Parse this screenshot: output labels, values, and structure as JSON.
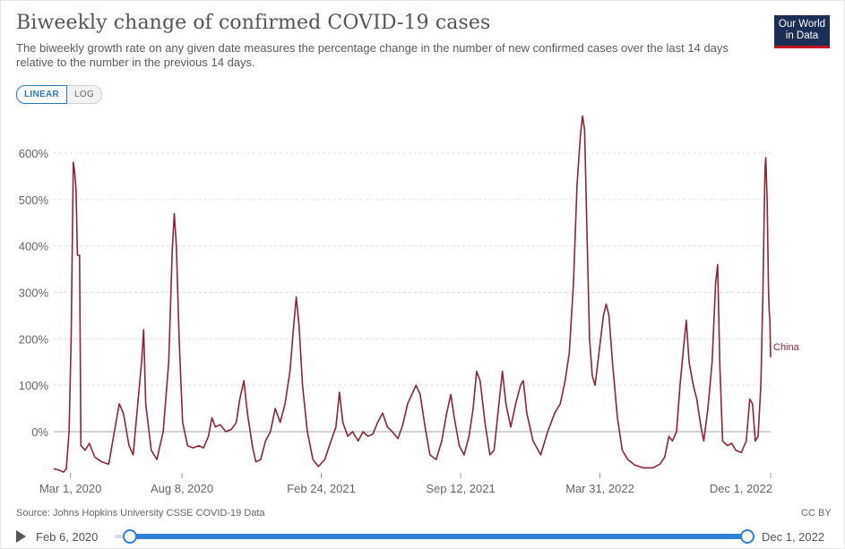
{
  "header": {
    "title": "Biweekly change of confirmed COVID-19 cases",
    "subtitle": "The biweekly growth rate on any given date measures the percentage change in the number of new confirmed cases over the last 14 days relative to the number in the previous 14 days.",
    "logo_line1": "Our World",
    "logo_line2": "in Data"
  },
  "toggle": {
    "linear_label": "LINEAR",
    "log_label": "LOG"
  },
  "footer": {
    "source": "Source: Johns Hopkins University CSSE COVID-19 Data",
    "license": "CC BY"
  },
  "timeline": {
    "start_label": "Feb 6, 2020",
    "end_label": "Dec 1, 2022"
  },
  "colors": {
    "series": "#8b2635",
    "grid": "#dddddd",
    "slider": "#2f7ed8",
    "logo_bg": "#1b2f56",
    "logo_accent": "#c4151c"
  },
  "chart_data": {
    "type": "line",
    "x_axis_type": "date",
    "x_range": [
      "2020-02-06",
      "2022-12-01"
    ],
    "y_range": [
      -90,
      680
    ],
    "y_ticks": [
      0,
      100,
      200,
      300,
      400,
      500,
      600
    ],
    "y_tick_labels": [
      "0%",
      "100%",
      "200%",
      "300%",
      "400%",
      "500%",
      "600%"
    ],
    "x_ticks": [
      "2020-03-01",
      "2020-08-08",
      "2021-02-24",
      "2021-09-12",
      "2022-03-31",
      "2022-12-01"
    ],
    "x_tick_labels": [
      "Mar 1, 2020",
      "Aug 8, 2020",
      "Feb 24, 2021",
      "Sep 12, 2021",
      "Mar 31, 2022",
      "Dec 1, 2022"
    ],
    "grid": true,
    "series": [
      {
        "name": "China",
        "points": [
          [
            "2020-02-06",
            -80
          ],
          [
            "2020-02-12",
            -82
          ],
          [
            "2020-02-20",
            -87
          ],
          [
            "2020-02-24",
            -80
          ],
          [
            "2020-02-28",
            0
          ],
          [
            "2020-03-02",
            200
          ],
          [
            "2020-03-05",
            580
          ],
          [
            "2020-03-07",
            560
          ],
          [
            "2020-03-09",
            520
          ],
          [
            "2020-03-11",
            380
          ],
          [
            "2020-03-14",
            380
          ],
          [
            "2020-03-16",
            -30
          ],
          [
            "2020-03-22",
            -40
          ],
          [
            "2020-03-28",
            -25
          ],
          [
            "2020-04-05",
            -55
          ],
          [
            "2020-04-15",
            -65
          ],
          [
            "2020-04-25",
            -70
          ],
          [
            "2020-05-03",
            0
          ],
          [
            "2020-05-10",
            60
          ],
          [
            "2020-05-16",
            40
          ],
          [
            "2020-05-24",
            -30
          ],
          [
            "2020-05-30",
            -50
          ],
          [
            "2020-06-05",
            50
          ],
          [
            "2020-06-11",
            150
          ],
          [
            "2020-06-14",
            220
          ],
          [
            "2020-06-17",
            60
          ],
          [
            "2020-06-25",
            -40
          ],
          [
            "2020-07-03",
            -60
          ],
          [
            "2020-07-12",
            0
          ],
          [
            "2020-07-20",
            150
          ],
          [
            "2020-07-25",
            390
          ],
          [
            "2020-07-28",
            470
          ],
          [
            "2020-07-31",
            400
          ],
          [
            "2020-08-04",
            200
          ],
          [
            "2020-08-09",
            20
          ],
          [
            "2020-08-16",
            -30
          ],
          [
            "2020-08-24",
            -35
          ],
          [
            "2020-09-01",
            -30
          ],
          [
            "2020-09-08",
            -35
          ],
          [
            "2020-09-15",
            -10
          ],
          [
            "2020-09-20",
            30
          ],
          [
            "2020-09-25",
            10
          ],
          [
            "2020-10-02",
            15
          ],
          [
            "2020-10-10",
            0
          ],
          [
            "2020-10-18",
            5
          ],
          [
            "2020-10-25",
            20
          ],
          [
            "2020-10-30",
            70
          ],
          [
            "2020-11-05",
            110
          ],
          [
            "2020-11-10",
            40
          ],
          [
            "2020-11-17",
            -30
          ],
          [
            "2020-11-22",
            -65
          ],
          [
            "2020-11-29",
            -60
          ],
          [
            "2020-12-06",
            -20
          ],
          [
            "2020-12-13",
            0
          ],
          [
            "2020-12-20",
            50
          ],
          [
            "2020-12-27",
            20
          ],
          [
            "2021-01-03",
            60
          ],
          [
            "2021-01-10",
            130
          ],
          [
            "2021-01-15",
            220
          ],
          [
            "2021-01-19",
            290
          ],
          [
            "2021-01-23",
            230
          ],
          [
            "2021-01-28",
            100
          ],
          [
            "2021-02-04",
            0
          ],
          [
            "2021-02-12",
            -60
          ],
          [
            "2021-02-20",
            -75
          ],
          [
            "2021-03-01",
            -60
          ],
          [
            "2021-03-10",
            -20
          ],
          [
            "2021-03-17",
            10
          ],
          [
            "2021-03-22",
            85
          ],
          [
            "2021-03-27",
            20
          ],
          [
            "2021-04-03",
            -10
          ],
          [
            "2021-04-10",
            0
          ],
          [
            "2021-04-18",
            -20
          ],
          [
            "2021-04-25",
            0
          ],
          [
            "2021-05-02",
            -10
          ],
          [
            "2021-05-09",
            -5
          ],
          [
            "2021-05-16",
            20
          ],
          [
            "2021-05-23",
            40
          ],
          [
            "2021-05-30",
            10
          ],
          [
            "2021-06-06",
            0
          ],
          [
            "2021-06-14",
            -15
          ],
          [
            "2021-06-21",
            15
          ],
          [
            "2021-06-28",
            60
          ],
          [
            "2021-07-04",
            80
          ],
          [
            "2021-07-10",
            100
          ],
          [
            "2021-07-16",
            80
          ],
          [
            "2021-07-23",
            10
          ],
          [
            "2021-07-30",
            -50
          ],
          [
            "2021-08-08",
            -60
          ],
          [
            "2021-08-16",
            -20
          ],
          [
            "2021-08-23",
            40
          ],
          [
            "2021-08-29",
            80
          ],
          [
            "2021-09-03",
            30
          ],
          [
            "2021-09-10",
            -30
          ],
          [
            "2021-09-17",
            -50
          ],
          [
            "2021-09-24",
            -10
          ],
          [
            "2021-09-30",
            50
          ],
          [
            "2021-10-05",
            130
          ],
          [
            "2021-10-10",
            110
          ],
          [
            "2021-10-17",
            20
          ],
          [
            "2021-10-24",
            -50
          ],
          [
            "2021-10-30",
            -40
          ],
          [
            "2021-11-06",
            60
          ],
          [
            "2021-11-11",
            130
          ],
          [
            "2021-11-16",
            60
          ],
          [
            "2021-11-23",
            10
          ],
          [
            "2021-11-30",
            60
          ],
          [
            "2021-12-07",
            100
          ],
          [
            "2021-12-11",
            110
          ],
          [
            "2021-12-16",
            40
          ],
          [
            "2021-12-25",
            -20
          ],
          [
            "2022-01-05",
            -50
          ],
          [
            "2022-01-15",
            0
          ],
          [
            "2022-01-25",
            40
          ],
          [
            "2022-02-02",
            60
          ],
          [
            "2022-02-09",
            110
          ],
          [
            "2022-02-15",
            170
          ],
          [
            "2022-02-21",
            320
          ],
          [
            "2022-02-26",
            530
          ],
          [
            "2022-03-03",
            640
          ],
          [
            "2022-03-06",
            680
          ],
          [
            "2022-03-09",
            650
          ],
          [
            "2022-03-12",
            450
          ],
          [
            "2022-03-16",
            200
          ],
          [
            "2022-03-20",
            120
          ],
          [
            "2022-03-24",
            100
          ],
          [
            "2022-03-28",
            150
          ],
          [
            "2022-04-01",
            200
          ],
          [
            "2022-04-05",
            250
          ],
          [
            "2022-04-09",
            275
          ],
          [
            "2022-04-13",
            250
          ],
          [
            "2022-04-18",
            150
          ],
          [
            "2022-04-25",
            30
          ],
          [
            "2022-05-02",
            -40
          ],
          [
            "2022-05-10",
            -60
          ],
          [
            "2022-05-20",
            -72
          ],
          [
            "2022-06-01",
            -78
          ],
          [
            "2022-06-15",
            -78
          ],
          [
            "2022-06-25",
            -70
          ],
          [
            "2022-07-02",
            -55
          ],
          [
            "2022-07-08",
            -10
          ],
          [
            "2022-07-13",
            -20
          ],
          [
            "2022-07-19",
            0
          ],
          [
            "2022-07-24",
            100
          ],
          [
            "2022-07-29",
            180
          ],
          [
            "2022-08-02",
            240
          ],
          [
            "2022-08-06",
            150
          ],
          [
            "2022-08-12",
            100
          ],
          [
            "2022-08-17",
            70
          ],
          [
            "2022-08-23",
            10
          ],
          [
            "2022-08-27",
            -20
          ],
          [
            "2022-09-02",
            50
          ],
          [
            "2022-09-08",
            150
          ],
          [
            "2022-09-13",
            320
          ],
          [
            "2022-09-16",
            360
          ],
          [
            "2022-09-19",
            150
          ],
          [
            "2022-09-23",
            -20
          ],
          [
            "2022-09-30",
            -30
          ],
          [
            "2022-10-06",
            -25
          ],
          [
            "2022-10-12",
            -40
          ],
          [
            "2022-10-20",
            -45
          ],
          [
            "2022-10-27",
            -20
          ],
          [
            "2022-11-01",
            70
          ],
          [
            "2022-11-05",
            60
          ],
          [
            "2022-11-09",
            -20
          ],
          [
            "2022-11-13",
            -10
          ],
          [
            "2022-11-17",
            100
          ],
          [
            "2022-11-20",
            300
          ],
          [
            "2022-11-22",
            490
          ],
          [
            "2022-11-23",
            570
          ],
          [
            "2022-11-24",
            590
          ],
          [
            "2022-11-26",
            500
          ],
          [
            "2022-11-27",
            400
          ],
          [
            "2022-11-28",
            300
          ],
          [
            "2022-11-29",
            260
          ],
          [
            "2022-11-30",
            240
          ],
          [
            "2022-12-01",
            160
          ]
        ]
      }
    ]
  }
}
